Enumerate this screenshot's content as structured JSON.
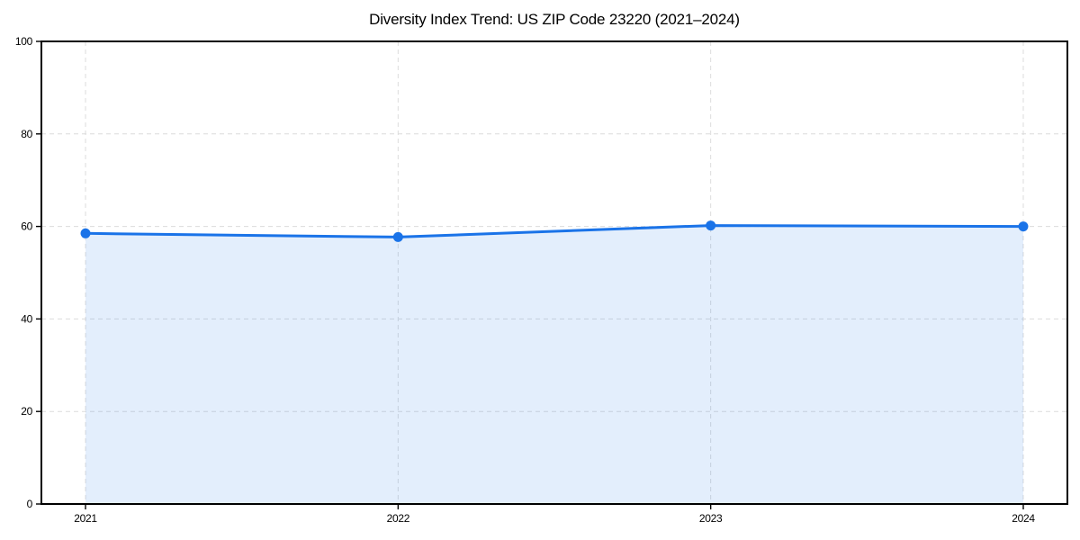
{
  "chart_data": {
    "type": "area",
    "title": "Diversity Index Trend: US ZIP Code 23220 (2021–2024)",
    "categories": [
      "2021",
      "2022",
      "2023",
      "2024"
    ],
    "series": [
      {
        "name": "Diversity Index",
        "values": [
          58.5,
          57.7,
          60.2,
          60.0
        ]
      }
    ],
    "xlabel": "",
    "ylabel": "",
    "ylim": [
      0,
      100
    ],
    "yticks": [
      0,
      20,
      40,
      60,
      80,
      100
    ],
    "grid": true,
    "grid_style": "dashed",
    "legend_position": "none",
    "colors": {
      "line": "#1a73e8",
      "marker": "#1a73e8",
      "fill": "rgba(26,115,232,0.12)",
      "grid": "#dcdcdc",
      "axis": "#000000",
      "text": "#000000",
      "background": "#ffffff"
    }
  }
}
